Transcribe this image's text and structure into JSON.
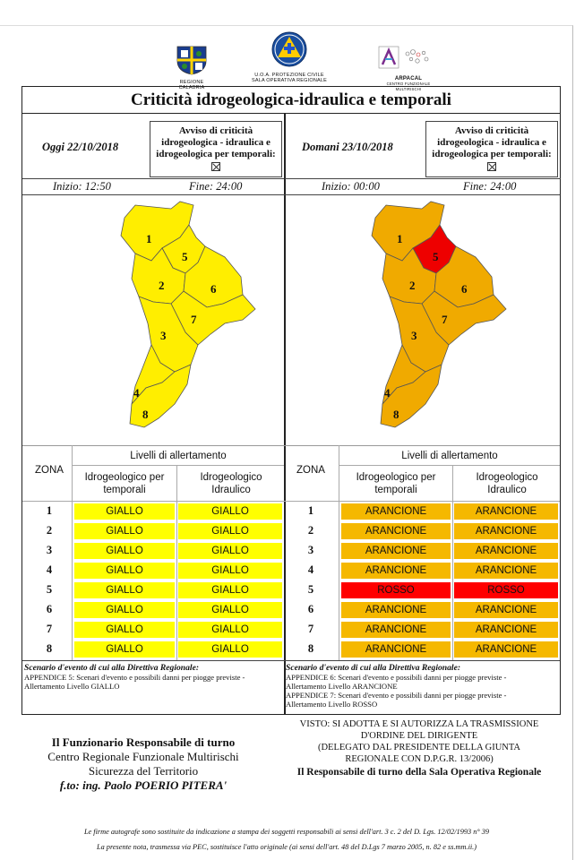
{
  "header": {
    "logo_left_caption": "REGIONE CALABRIA",
    "logo_center_caption_1": "U.O.A. PROTEZIONE CIVILE",
    "logo_center_caption_2": "SALA OPERATIVA REGIONALE",
    "logo_right_caption_1": "ARPACAL",
    "logo_right_caption_2": "CENTRO FUNZIONALE MULTIRISCHI"
  },
  "title": "Criticità idrogeologica-idraulica e temporali",
  "today": {
    "date_label": "Oggi 22/10/2018",
    "avviso": [
      "Avviso di criticità",
      "idrogeologica - idraulica e",
      "idrogeologica per temporali:"
    ],
    "inizio": "Inizio: 12:50",
    "fine": "Fine: 24:00"
  },
  "tomorrow": {
    "date_label": "Domani 23/10/2018",
    "avviso": [
      "Avviso di criticità",
      "idrogeologica - idraulica e",
      "idrogeologica per temporali:"
    ],
    "inizio": "Inizio: 00:00",
    "fine": "Fine: 24:00"
  },
  "map_zones": [
    "1",
    "2",
    "3",
    "4",
    "5",
    "6",
    "7",
    "8"
  ],
  "colors": {
    "giallo": "#ffff00",
    "arancione": "#f5b800",
    "rosso": "#ff0000",
    "map_yellow": "#ffee00",
    "map_orange": "#f0aa00",
    "map_red": "#ee0000"
  },
  "table": {
    "zona_label": "ZONA",
    "livelli_label": "Livelli di allertamento",
    "col1": [
      "Idrogeologico per",
      "temporali"
    ],
    "col2": [
      "Idrogeologico",
      "Idraulico"
    ]
  },
  "today_levels": [
    {
      "zone": "1",
      "a": "GIALLO",
      "b": "GIALLO"
    },
    {
      "zone": "2",
      "a": "GIALLO",
      "b": "GIALLO"
    },
    {
      "zone": "3",
      "a": "GIALLO",
      "b": "GIALLO"
    },
    {
      "zone": "4",
      "a": "GIALLO",
      "b": "GIALLO"
    },
    {
      "zone": "5",
      "a": "GIALLO",
      "b": "GIALLO"
    },
    {
      "zone": "6",
      "a": "GIALLO",
      "b": "GIALLO"
    },
    {
      "zone": "7",
      "a": "GIALLO",
      "b": "GIALLO"
    },
    {
      "zone": "8",
      "a": "GIALLO",
      "b": "GIALLO"
    }
  ],
  "tomorrow_levels": [
    {
      "zone": "1",
      "a": "ARANCIONE",
      "b": "ARANCIONE"
    },
    {
      "zone": "2",
      "a": "ARANCIONE",
      "b": "ARANCIONE"
    },
    {
      "zone": "3",
      "a": "ARANCIONE",
      "b": "ARANCIONE"
    },
    {
      "zone": "4",
      "a": "ARANCIONE",
      "b": "ARANCIONE"
    },
    {
      "zone": "5",
      "a": "ROSSO",
      "b": "ROSSO"
    },
    {
      "zone": "6",
      "a": "ARANCIONE",
      "b": "ARANCIONE"
    },
    {
      "zone": "7",
      "a": "ARANCIONE",
      "b": "ARANCIONE"
    },
    {
      "zone": "8",
      "a": "ARANCIONE",
      "b": "ARANCIONE"
    }
  ],
  "scenario": {
    "title": "Scenario d'evento di cui alla Direttiva Regionale:",
    "today_lines": [
      "APPENDICE 5: Scenari d'evento e possibili danni per piogge previste -",
      "Allertamento Livello GIALLO"
    ],
    "tomorrow_lines": [
      "APPENDICE 6: Scenari d'evento e possibili danni per piogge previste -",
      "Allertamento Livello ARANCIONE",
      "APPENDICE 7: Scenari d'evento e possibili danni per piogge previste -",
      "Allertamento Livello ROSSO"
    ]
  },
  "signature_left": [
    "Il Funzionario Responsabile di turno",
    "Centro Regionale Funzionale Multirischi",
    "Sicurezza del Territorio",
    "f.to: ing. Paolo POERIO PITERA'"
  ],
  "signature_right": [
    "VISTO: SI ADOTTA E SI AUTORIZZA LA TRASMISSIONE",
    "D'ORDINE DEL DIRIGENTE",
    "(DELEGATO DAL PRESIDENTE DELLA GIUNTA",
    "REGIONALE CON D.P.G.R. 13/2006)",
    "Il Responsabile di turno della Sala Operativa Regionale"
  ],
  "footer": [
    "Le firme autografe sono sostituite da indicazione a stampa dei soggetti responsabili ai sensi dell'art. 3 c. 2 del D. Lgs. 12/02/1993 n° 39",
    "La presente nota, trasmessa via PEC, sostituisce l'atto originale (ai sensi dell'art. 48 del D.Lgs 7 marzo 2005, n. 82 e ss.mm.ii.)"
  ]
}
